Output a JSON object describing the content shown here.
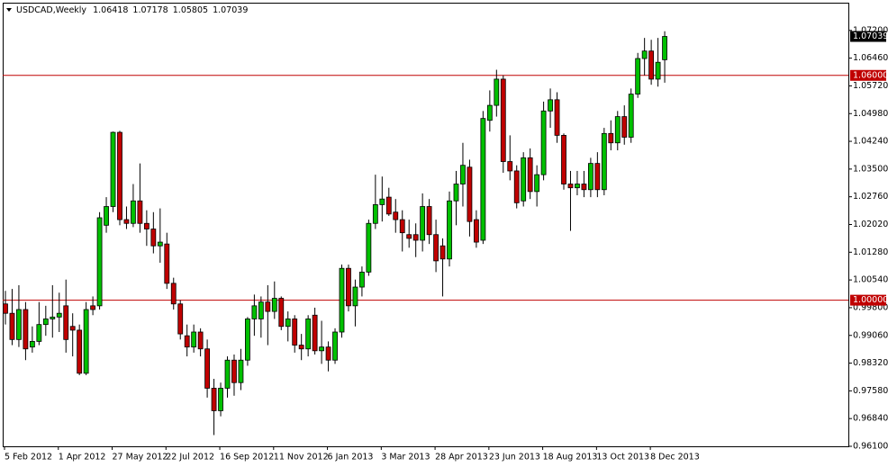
{
  "chart_data": {
    "type": "candlestick",
    "title": "USDCAD,Weekly",
    "categories": [
      "5 Feb 2012",
      null,
      null,
      null,
      null,
      null,
      null,
      null,
      "1 Apr 2012",
      null,
      null,
      null,
      null,
      null,
      null,
      null,
      "27 May 2012",
      null,
      null,
      null,
      null,
      null,
      null,
      null,
      "22 Jul 2012",
      null,
      null,
      null,
      null,
      null,
      null,
      null,
      "16 Sep 2012",
      null,
      null,
      null,
      null,
      null,
      null,
      null,
      "11 Nov 2012",
      null,
      null,
      null,
      null,
      null,
      null,
      null,
      "6 Jan 2013",
      null,
      null,
      null,
      null,
      null,
      null,
      null,
      "3 Mar 2013",
      null,
      null,
      null,
      null,
      null,
      null,
      null,
      "28 Apr 2013",
      null,
      null,
      null,
      null,
      null,
      null,
      null,
      "23 Jun 2013",
      null,
      null,
      null,
      null,
      null,
      null,
      null,
      "18 Aug 2013",
      null,
      null,
      null,
      null,
      null,
      null,
      null,
      "13 Oct 2013",
      null,
      null,
      null,
      null,
      null,
      null,
      null,
      "8 Dec 2013",
      null,
      null
    ],
    "open": [
      0.999,
      0.9965,
      0.9895,
      0.9975,
      0.9875,
      0.989,
      0.9935,
      0.995,
      0.9955,
      0.9985,
      0.993,
      0.992,
      0.9805,
      0.9985,
      0.9985,
      1.02,
      1.025,
      1.0448,
      1.0215,
      1.0205,
      1.0265,
      1.0205,
      1.019,
      1.0145,
      1.015,
      1.0045,
      0.999,
      0.9905,
      0.9875,
      0.9915,
      0.987,
      0.9765,
      0.9705,
      0.9765,
      0.984,
      0.978,
      0.984,
      0.995,
      0.995,
      0.9995,
      0.997,
      1.0005,
      0.993,
      0.995,
      0.988,
      0.987,
      0.996,
      0.9865,
      0.9875,
      0.984,
      0.9915,
      1.0085,
      0.9985,
      1.0035,
      1.0075,
      1.0205,
      1.0255,
      1.0275,
      1.0235,
      1.0215,
      1.0175,
      1.0175,
      1.016,
      1.025,
      1.0175,
      1.0145,
      1.011,
      1.0265,
      1.031,
      1.0355,
      1.0215,
      1.016,
      1.048,
      1.052,
      1.059,
      1.037,
      1.0345,
      1.0265,
      1.038,
      1.029,
      1.0335,
      1.0505,
      1.0535,
      1.044,
      1.031,
      1.03,
      1.031,
      1.0295,
      1.0365,
      1.0295,
      1.0445,
      1.042,
      1.049,
      1.0435,
      1.055,
      1.0645,
      1.0665,
      1.059,
      1.06418
    ],
    "high": [
      1.0025,
      1.003,
      1.004,
      0.9995,
      0.993,
      0.9995,
      0.9985,
      1.004,
      1.002,
      1.0055,
      0.9965,
      0.9935,
      0.9995,
      1.001,
      1.0235,
      1.0275,
      1.045,
      1.0452,
      1.025,
      1.031,
      1.0365,
      1.024,
      1.0235,
      1.0245,
      1.018,
      1.006,
      1.0,
      0.9935,
      0.9935,
      0.9925,
      0.9895,
      0.979,
      0.978,
      0.985,
      0.9855,
      0.987,
      0.9955,
      1.0015,
      1.001,
      1.004,
      1.005,
      1.001,
      0.997,
      0.996,
      0.991,
      0.996,
      0.998,
      0.9945,
      0.989,
      0.9925,
      1.0095,
      1.0095,
      1.0055,
      1.009,
      1.0215,
      1.0335,
      1.033,
      1.03,
      1.027,
      1.024,
      1.0215,
      1.0205,
      1.0285,
      1.027,
      1.0215,
      1.0165,
      1.029,
      1.0345,
      1.042,
      1.0375,
      1.024,
      1.0505,
      1.056,
      1.0615,
      1.06,
      1.044,
      1.036,
      1.0395,
      1.0405,
      1.036,
      1.053,
      1.0565,
      1.0555,
      1.0445,
      1.0345,
      1.0345,
      1.0345,
      1.038,
      1.0395,
      1.046,
      1.048,
      1.0505,
      1.052,
      1.0565,
      1.066,
      1.07,
      1.0695,
      1.07,
      1.07178
    ],
    "low": [
      0.9935,
      0.988,
      0.9875,
      0.984,
      0.986,
      0.988,
      0.9905,
      0.99,
      0.9915,
      0.986,
      0.985,
      0.98,
      0.98,
      0.996,
      0.9975,
      1.018,
      1.0235,
      1.02,
      1.019,
      1.0195,
      1.018,
      1.0145,
      1.0125,
      1.01,
      1.003,
      0.9975,
      0.9895,
      0.985,
      0.986,
      0.985,
      0.974,
      0.964,
      0.969,
      0.974,
      0.9745,
      0.976,
      0.9825,
      0.9905,
      0.99,
      0.988,
      0.995,
      0.992,
      0.989,
      0.986,
      0.984,
      0.985,
      0.9855,
      0.983,
      0.981,
      0.983,
      0.99,
      0.997,
      0.993,
      1.001,
      1.0065,
      1.019,
      1.021,
      1.0225,
      1.018,
      1.013,
      1.014,
      1.0115,
      1.013,
      1.015,
      1.0075,
      1.001,
      1.009,
      1.02,
      1.025,
      1.017,
      1.014,
      1.015,
      1.045,
      1.049,
      1.034,
      1.032,
      1.0245,
      1.025,
      1.027,
      1.025,
      1.032,
      1.046,
      1.042,
      1.0295,
      1.0185,
      1.028,
      1.0275,
      1.0275,
      1.0275,
      1.028,
      1.04,
      1.04,
      1.0415,
      1.042,
      1.054,
      1.06,
      1.0575,
      1.057,
      1.05805
    ],
    "close": [
      0.9965,
      0.9895,
      0.9975,
      0.987,
      0.989,
      0.9935,
      0.995,
      0.9955,
      0.9965,
      0.9895,
      0.992,
      0.9805,
      0.9975,
      0.9975,
      1.022,
      1.025,
      1.0448,
      1.0215,
      1.0205,
      1.0265,
      1.0205,
      1.019,
      1.0145,
      1.0155,
      1.0045,
      0.999,
      0.991,
      0.9875,
      0.9915,
      0.987,
      0.9765,
      0.9705,
      0.9765,
      0.984,
      0.978,
      0.984,
      0.995,
      0.9985,
      0.9995,
      0.997,
      1.0005,
      0.993,
      0.995,
      0.988,
      0.987,
      0.995,
      0.9865,
      0.9875,
      0.984,
      0.9915,
      1.0085,
      0.9985,
      1.0035,
      1.0075,
      1.0205,
      1.0255,
      1.027,
      1.023,
      1.0215,
      1.018,
      1.0165,
      1.016,
      1.025,
      1.0175,
      1.0105,
      1.011,
      1.0265,
      1.031,
      1.036,
      1.021,
      1.0155,
      1.0485,
      1.052,
      1.059,
      1.037,
      1.0345,
      1.026,
      1.038,
      1.029,
      1.0335,
      1.0505,
      1.0535,
      1.044,
      1.031,
      1.03,
      1.031,
      1.0295,
      1.0365,
      1.0295,
      1.0445,
      1.042,
      1.049,
      1.0435,
      1.055,
      1.0645,
      1.0665,
      1.059,
      1.0635,
      1.07039
    ],
    "up_color": "#00c000",
    "down_color": "#c00000",
    "ylim": [
      0.961,
      1.0794
    ],
    "yticks": [
      {
        "value": 1.072,
        "label": "1.07200"
      },
      {
        "value": 1.0646,
        "label": "1.06460"
      },
      {
        "value": 1.0572,
        "label": "1.05720"
      },
      {
        "value": 1.0498,
        "label": "1.04980"
      },
      {
        "value": 1.0424,
        "label": "1.04240"
      },
      {
        "value": 1.035,
        "label": "1.03500"
      },
      {
        "value": 1.0276,
        "label": "1.02760"
      },
      {
        "value": 1.0202,
        "label": "1.02020"
      },
      {
        "value": 1.0128,
        "label": "1.01280"
      },
      {
        "value": 1.0054,
        "label": "1.00540"
      },
      {
        "value": 0.998,
        "label": "0.99800"
      },
      {
        "value": 0.9906,
        "label": "0.99060"
      },
      {
        "value": 0.9832,
        "label": "0.98320"
      },
      {
        "value": 0.9758,
        "label": "0.97580"
      },
      {
        "value": 0.9684,
        "label": "0.96840"
      },
      {
        "value": 0.961,
        "label": "0.96100"
      }
    ],
    "hlines": [
      {
        "value": 1.06,
        "label": "1.06000"
      },
      {
        "value": 1.0,
        "label": "1.00000"
      }
    ],
    "hline_color": "#c00000",
    "grid": false
  }
}
